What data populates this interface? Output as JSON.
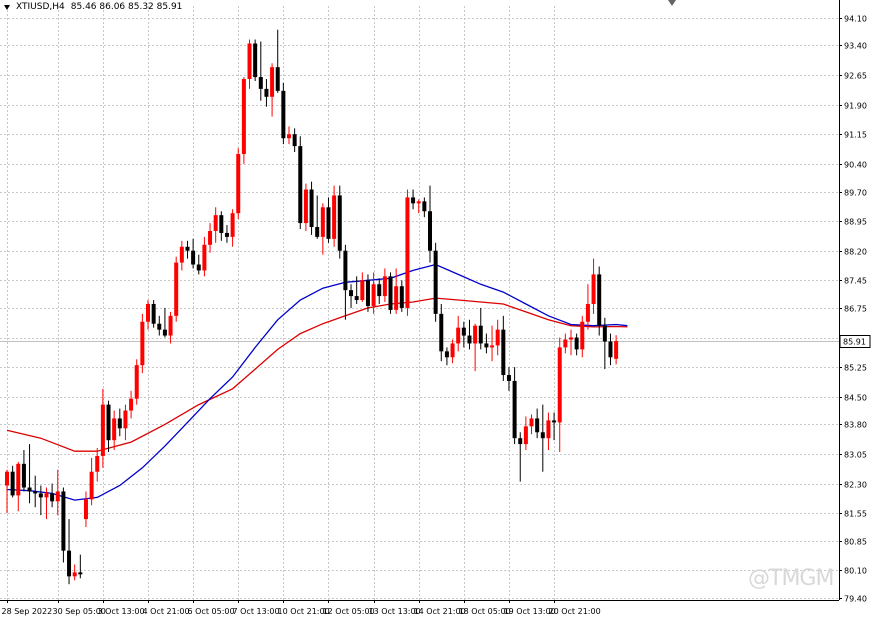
{
  "chart_title": "XTIUSD,H4",
  "ohlc_readout": "85.46 86.06 85.32 85.91",
  "watermark": "@TMGM",
  "colors": {
    "bull": "#ff0000",
    "bear": "#000000",
    "ma_fast": "#0000cc",
    "ma_slow": "#dd0000",
    "grid": "#c8c8c8",
    "price_line": "#c0c0c0"
  },
  "chart_data": {
    "type": "candlestick",
    "symbol": "XTIUSD",
    "timeframe": "H4",
    "last_price": 85.91,
    "last_price_label": "85.91",
    "ylim": [
      79.35,
      94.4
    ],
    "y_ticks": [
      "94.10",
      "93.40",
      "92.65",
      "91.90",
      "91.15",
      "90.40",
      "89.70",
      "88.95",
      "88.20",
      "87.45",
      "86.75",
      "86.00",
      "85.25",
      "84.50",
      "83.80",
      "83.05",
      "82.30",
      "81.55",
      "80.85",
      "80.10",
      "79.40"
    ],
    "x_ticks": [
      {
        "label": "28 Sep 2022",
        "bar": 0
      },
      {
        "label": "30 Sep 05:00",
        "bar": 9
      },
      {
        "label": "3 Oct 13:00",
        "bar": 17
      },
      {
        "label": "4 Oct 21:00",
        "bar": 25
      },
      {
        "label": "6 Oct 05:00",
        "bar": 33
      },
      {
        "label": "7 Oct 13:00",
        "bar": 41
      },
      {
        "label": "10 Oct 21:00",
        "bar": 49
      },
      {
        "label": "12 Oct 05:00",
        "bar": 57
      },
      {
        "label": "13 Oct 13:00",
        "bar": 65
      },
      {
        "label": "14 Oct 21:00",
        "bar": 73
      },
      {
        "label": "18 Oct 05:00",
        "bar": 81
      },
      {
        "label": "19 Oct 13:00",
        "bar": 89
      },
      {
        "label": "20 Oct 21:00",
        "bar": 97
      }
    ],
    "candles": [
      {
        "o": 82.25,
        "h": 82.65,
        "l": 81.55,
        "c": 82.6
      },
      {
        "o": 82.6,
        "h": 82.75,
        "l": 81.95,
        "c": 82.0
      },
      {
        "o": 82.0,
        "h": 82.85,
        "l": 81.6,
        "c": 82.8
      },
      {
        "o": 82.8,
        "h": 83.15,
        "l": 82.1,
        "c": 82.2
      },
      {
        "o": 82.2,
        "h": 83.3,
        "l": 81.8,
        "c": 82.1
      },
      {
        "o": 82.1,
        "h": 82.5,
        "l": 81.7,
        "c": 82.05
      },
      {
        "o": 82.05,
        "h": 82.25,
        "l": 81.5,
        "c": 81.95
      },
      {
        "o": 81.95,
        "h": 82.2,
        "l": 81.4,
        "c": 82.05
      },
      {
        "o": 82.05,
        "h": 82.3,
        "l": 81.7,
        "c": 81.85
      },
      {
        "o": 81.85,
        "h": 82.65,
        "l": 81.5,
        "c": 82.1
      },
      {
        "o": 82.1,
        "h": 82.2,
        "l": 80.3,
        "c": 80.6
      },
      {
        "o": 80.6,
        "h": 81.4,
        "l": 79.75,
        "c": 79.95
      },
      {
        "o": 79.95,
        "h": 80.25,
        "l": 79.85,
        "c": 80.05
      },
      {
        "o": 80.05,
        "h": 80.5,
        "l": 79.9,
        "c": 80.0
      },
      {
        "o": 81.4,
        "h": 82.1,
        "l": 81.2,
        "c": 81.9
      },
      {
        "o": 81.9,
        "h": 82.95,
        "l": 81.75,
        "c": 82.6
      },
      {
        "o": 82.6,
        "h": 83.2,
        "l": 82.35,
        "c": 83.0
      },
      {
        "o": 83.0,
        "h": 84.7,
        "l": 82.7,
        "c": 84.3
      },
      {
        "o": 84.3,
        "h": 84.4,
        "l": 83.1,
        "c": 83.4
      },
      {
        "o": 83.4,
        "h": 84.15,
        "l": 83.15,
        "c": 83.95
      },
      {
        "o": 83.95,
        "h": 84.2,
        "l": 83.5,
        "c": 83.7
      },
      {
        "o": 83.7,
        "h": 84.3,
        "l": 83.4,
        "c": 84.15
      },
      {
        "o": 84.15,
        "h": 84.65,
        "l": 83.95,
        "c": 84.45
      },
      {
        "o": 84.45,
        "h": 85.45,
        "l": 84.3,
        "c": 85.3
      },
      {
        "o": 85.3,
        "h": 86.6,
        "l": 85.1,
        "c": 86.4
      },
      {
        "o": 86.4,
        "h": 86.95,
        "l": 86.2,
        "c": 86.85
      },
      {
        "o": 86.85,
        "h": 86.95,
        "l": 86.25,
        "c": 86.35
      },
      {
        "o": 86.35,
        "h": 86.55,
        "l": 86.05,
        "c": 86.2
      },
      {
        "o": 86.2,
        "h": 86.75,
        "l": 86.0,
        "c": 86.05
      },
      {
        "o": 86.05,
        "h": 86.65,
        "l": 85.85,
        "c": 86.55
      },
      {
        "o": 86.55,
        "h": 88.05,
        "l": 86.4,
        "c": 87.9
      },
      {
        "o": 87.9,
        "h": 88.45,
        "l": 87.7,
        "c": 88.3
      },
      {
        "o": 88.3,
        "h": 88.45,
        "l": 88.0,
        "c": 88.2
      },
      {
        "o": 88.2,
        "h": 88.5,
        "l": 87.75,
        "c": 87.85
      },
      {
        "o": 87.85,
        "h": 88.1,
        "l": 87.6,
        "c": 87.7
      },
      {
        "o": 87.7,
        "h": 88.55,
        "l": 87.55,
        "c": 88.35
      },
      {
        "o": 88.35,
        "h": 88.9,
        "l": 88.15,
        "c": 88.7
      },
      {
        "o": 88.7,
        "h": 89.3,
        "l": 88.4,
        "c": 89.1
      },
      {
        "o": 89.1,
        "h": 89.2,
        "l": 88.45,
        "c": 88.65
      },
      {
        "o": 88.65,
        "h": 88.85,
        "l": 88.4,
        "c": 88.55
      },
      {
        "o": 88.55,
        "h": 89.25,
        "l": 88.3,
        "c": 89.15
      },
      {
        "o": 89.15,
        "h": 90.8,
        "l": 89.0,
        "c": 90.65
      },
      {
        "o": 90.65,
        "h": 92.6,
        "l": 90.4,
        "c": 92.55
      },
      {
        "o": 92.55,
        "h": 93.55,
        "l": 92.3,
        "c": 93.45
      },
      {
        "o": 93.45,
        "h": 93.55,
        "l": 92.5,
        "c": 92.6
      },
      {
        "o": 92.6,
        "h": 93.5,
        "l": 92.0,
        "c": 92.3
      },
      {
        "o": 92.3,
        "h": 92.55,
        "l": 91.85,
        "c": 92.1
      },
      {
        "o": 92.1,
        "h": 92.95,
        "l": 91.6,
        "c": 92.85
      },
      {
        "o": 92.85,
        "h": 93.8,
        "l": 92.2,
        "c": 92.25
      },
      {
        "o": 92.25,
        "h": 92.45,
        "l": 90.9,
        "c": 91.05
      },
      {
        "o": 91.05,
        "h": 91.35,
        "l": 90.9,
        "c": 91.15
      },
      {
        "o": 91.15,
        "h": 91.3,
        "l": 90.7,
        "c": 90.85
      },
      {
        "o": 90.85,
        "h": 91.1,
        "l": 88.75,
        "c": 88.9
      },
      {
        "o": 88.9,
        "h": 89.9,
        "l": 88.7,
        "c": 89.75
      },
      {
        "o": 89.75,
        "h": 89.95,
        "l": 88.6,
        "c": 88.8
      },
      {
        "o": 88.8,
        "h": 89.6,
        "l": 88.5,
        "c": 88.55
      },
      {
        "o": 88.55,
        "h": 89.4,
        "l": 88.1,
        "c": 89.3
      },
      {
        "o": 89.3,
        "h": 89.55,
        "l": 88.4,
        "c": 88.5
      },
      {
        "o": 88.5,
        "h": 89.85,
        "l": 88.3,
        "c": 89.6
      },
      {
        "o": 89.6,
        "h": 89.85,
        "l": 88.0,
        "c": 88.2
      },
      {
        "o": 88.2,
        "h": 88.35,
        "l": 86.45,
        "c": 87.2
      },
      {
        "o": 87.2,
        "h": 87.35,
        "l": 86.75,
        "c": 87.05
      },
      {
        "o": 87.05,
        "h": 87.55,
        "l": 86.85,
        "c": 86.95
      },
      {
        "o": 86.95,
        "h": 87.65,
        "l": 86.9,
        "c": 87.45
      },
      {
        "o": 87.45,
        "h": 87.6,
        "l": 86.65,
        "c": 86.8
      },
      {
        "o": 86.8,
        "h": 87.65,
        "l": 86.6,
        "c": 87.35
      },
      {
        "o": 87.35,
        "h": 87.5,
        "l": 86.85,
        "c": 87.05
      },
      {
        "o": 87.05,
        "h": 87.75,
        "l": 86.9,
        "c": 87.55
      },
      {
        "o": 87.55,
        "h": 87.65,
        "l": 86.6,
        "c": 86.7
      },
      {
        "o": 86.7,
        "h": 87.75,
        "l": 86.6,
        "c": 87.3
      },
      {
        "o": 87.3,
        "h": 87.45,
        "l": 86.65,
        "c": 86.75
      },
      {
        "o": 86.75,
        "h": 89.75,
        "l": 86.55,
        "c": 89.55
      },
      {
        "o": 89.55,
        "h": 89.75,
        "l": 89.25,
        "c": 89.4
      },
      {
        "o": 89.4,
        "h": 89.5,
        "l": 89.15,
        "c": 89.45
      },
      {
        "o": 89.45,
        "h": 89.55,
        "l": 89.05,
        "c": 89.2
      },
      {
        "o": 89.2,
        "h": 89.85,
        "l": 87.9,
        "c": 88.2
      },
      {
        "o": 88.2,
        "h": 88.4,
        "l": 86.4,
        "c": 86.6
      },
      {
        "o": 86.6,
        "h": 86.85,
        "l": 85.4,
        "c": 85.65
      },
      {
        "o": 85.65,
        "h": 85.75,
        "l": 85.3,
        "c": 85.5
      },
      {
        "o": 85.5,
        "h": 85.95,
        "l": 85.35,
        "c": 85.85
      },
      {
        "o": 85.85,
        "h": 86.55,
        "l": 85.65,
        "c": 86.25
      },
      {
        "o": 86.25,
        "h": 86.4,
        "l": 85.75,
        "c": 86.05
      },
      {
        "o": 86.05,
        "h": 86.45,
        "l": 85.7,
        "c": 85.85
      },
      {
        "o": 85.85,
        "h": 86.35,
        "l": 85.15,
        "c": 86.3
      },
      {
        "o": 86.3,
        "h": 86.75,
        "l": 85.7,
        "c": 85.85
      },
      {
        "o": 85.85,
        "h": 86.1,
        "l": 85.6,
        "c": 85.75
      },
      {
        "o": 85.75,
        "h": 86.3,
        "l": 85.4,
        "c": 85.8
      },
      {
        "o": 85.8,
        "h": 86.45,
        "l": 85.55,
        "c": 86.2
      },
      {
        "o": 86.2,
        "h": 86.55,
        "l": 84.9,
        "c": 85.05
      },
      {
        "o": 85.05,
        "h": 85.25,
        "l": 84.65,
        "c": 84.9
      },
      {
        "o": 84.9,
        "h": 85.25,
        "l": 83.3,
        "c": 83.45
      },
      {
        "o": 83.45,
        "h": 83.6,
        "l": 82.35,
        "c": 83.3
      },
      {
        "o": 83.3,
        "h": 84.0,
        "l": 83.15,
        "c": 83.75
      },
      {
        "o": 83.75,
        "h": 84.05,
        "l": 83.55,
        "c": 83.95
      },
      {
        "o": 83.95,
        "h": 84.2,
        "l": 83.45,
        "c": 83.6
      },
      {
        "o": 83.6,
        "h": 84.3,
        "l": 82.6,
        "c": 83.45
      },
      {
        "o": 83.45,
        "h": 84.1,
        "l": 83.15,
        "c": 83.9
      },
      {
        "o": 83.9,
        "h": 84.1,
        "l": 83.4,
        "c": 83.85
      },
      {
        "o": 83.85,
        "h": 86.0,
        "l": 83.1,
        "c": 85.75
      },
      {
        "o": 85.75,
        "h": 86.1,
        "l": 85.6,
        "c": 85.95
      },
      {
        "o": 85.95,
        "h": 86.2,
        "l": 85.55,
        "c": 86.0
      },
      {
        "o": 86.0,
        "h": 86.1,
        "l": 85.55,
        "c": 85.7
      },
      {
        "o": 85.7,
        "h": 86.55,
        "l": 85.5,
        "c": 86.4
      },
      {
        "o": 86.4,
        "h": 87.35,
        "l": 86.2,
        "c": 86.85
      },
      {
        "o": 86.85,
        "h": 88.0,
        "l": 86.6,
        "c": 87.6
      },
      {
        "o": 87.6,
        "h": 87.8,
        "l": 86.05,
        "c": 86.3
      },
      {
        "o": 86.3,
        "h": 86.5,
        "l": 85.2,
        "c": 85.9
      },
      {
        "o": 85.9,
        "h": 86.1,
        "l": 85.3,
        "c": 85.5
      },
      {
        "o": 85.46,
        "h": 86.06,
        "l": 85.32,
        "c": 85.91
      }
    ],
    "ma_fast": [
      {
        "bar": 0,
        "v": 82.15
      },
      {
        "bar": 4,
        "v": 82.12
      },
      {
        "bar": 8,
        "v": 82.05
      },
      {
        "bar": 12,
        "v": 81.88
      },
      {
        "bar": 16,
        "v": 81.95
      },
      {
        "bar": 20,
        "v": 82.25
      },
      {
        "bar": 24,
        "v": 82.7
      },
      {
        "bar": 28,
        "v": 83.25
      },
      {
        "bar": 32,
        "v": 83.85
      },
      {
        "bar": 36,
        "v": 84.45
      },
      {
        "bar": 40,
        "v": 85.0
      },
      {
        "bar": 44,
        "v": 85.75
      },
      {
        "bar": 48,
        "v": 86.45
      },
      {
        "bar": 52,
        "v": 86.95
      },
      {
        "bar": 56,
        "v": 87.25
      },
      {
        "bar": 60,
        "v": 87.4
      },
      {
        "bar": 64,
        "v": 87.45
      },
      {
        "bar": 68,
        "v": 87.5
      },
      {
        "bar": 72,
        "v": 87.7
      },
      {
        "bar": 76,
        "v": 87.85
      },
      {
        "bar": 80,
        "v": 87.6
      },
      {
        "bar": 84,
        "v": 87.35
      },
      {
        "bar": 88,
        "v": 87.15
      },
      {
        "bar": 92,
        "v": 86.85
      },
      {
        "bar": 96,
        "v": 86.55
      },
      {
        "bar": 100,
        "v": 86.33
      },
      {
        "bar": 104,
        "v": 86.3
      },
      {
        "bar": 108,
        "v": 86.33
      },
      {
        "bar": 110,
        "v": 86.3
      }
    ],
    "ma_slow": [
      {
        "bar": 0,
        "v": 83.65
      },
      {
        "bar": 6,
        "v": 83.45
      },
      {
        "bar": 12,
        "v": 83.12
      },
      {
        "bar": 16,
        "v": 83.12
      },
      {
        "bar": 22,
        "v": 83.35
      },
      {
        "bar": 28,
        "v": 83.8
      },
      {
        "bar": 34,
        "v": 84.3
      },
      {
        "bar": 40,
        "v": 84.7
      },
      {
        "bar": 44,
        "v": 85.2
      },
      {
        "bar": 48,
        "v": 85.7
      },
      {
        "bar": 52,
        "v": 86.1
      },
      {
        "bar": 56,
        "v": 86.35
      },
      {
        "bar": 60,
        "v": 86.55
      },
      {
        "bar": 64,
        "v": 86.75
      },
      {
        "bar": 68,
        "v": 86.85
      },
      {
        "bar": 72,
        "v": 86.9
      },
      {
        "bar": 76,
        "v": 87.0
      },
      {
        "bar": 80,
        "v": 86.95
      },
      {
        "bar": 84,
        "v": 86.9
      },
      {
        "bar": 88,
        "v": 86.85
      },
      {
        "bar": 92,
        "v": 86.65
      },
      {
        "bar": 96,
        "v": 86.45
      },
      {
        "bar": 100,
        "v": 86.3
      },
      {
        "bar": 104,
        "v": 86.27
      },
      {
        "bar": 108,
        "v": 86.28
      },
      {
        "bar": 110,
        "v": 86.27
      }
    ]
  }
}
